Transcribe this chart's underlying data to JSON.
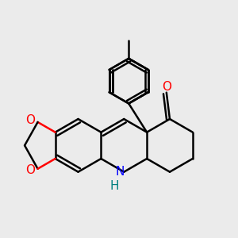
{
  "background_color": "#ebebeb",
  "bond_color": "#000000",
  "oxygen_color": "#ff0000",
  "nitrogen_color": "#0000ff",
  "nh_color": "#008080",
  "line_width": 1.8,
  "figsize": [
    3.0,
    3.0
  ],
  "dpi": 100,
  "xlim": [
    -4.0,
    3.2
  ],
  "ylim": [
    -2.2,
    4.0
  ]
}
